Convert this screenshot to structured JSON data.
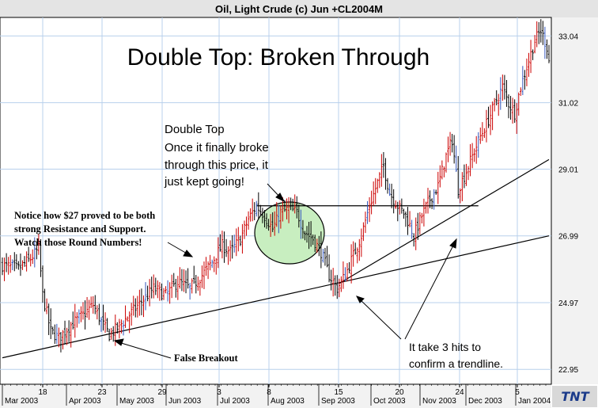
{
  "header": {
    "title": "Oil, Light Crude (c) Jun +CL2004M"
  },
  "chart_data": {
    "type": "ohlc",
    "title": "Double Top: Broken Through",
    "price_axis": {
      "ticks": [
        22.95,
        24.97,
        26.99,
        29.01,
        31.02,
        33.04
      ],
      "ylim": [
        22.5,
        33.6
      ]
    },
    "x_axis": {
      "day_ticks": [
        "18",
        "23",
        "29",
        "3",
        "8",
        "15",
        "20",
        "24",
        "5"
      ],
      "month_labels": [
        "Mar 2003",
        "Apr 2003",
        "May 2003",
        "Jun 2003",
        "Jul 2003",
        "Aug 2003",
        "Sep 2003",
        "Oct 2003",
        "Nov 2003",
        "Dec 2003",
        "Jan 2004"
      ]
    },
    "grid": true,
    "series": {
      "anchors": [
        [
          0,
          26.1
        ],
        [
          8,
          26.0
        ],
        [
          14,
          26.3
        ],
        [
          18,
          26.6
        ],
        [
          20,
          25.2
        ],
        [
          24,
          24.1
        ],
        [
          28,
          23.9
        ],
        [
          34,
          24.3
        ],
        [
          40,
          24.6
        ],
        [
          45,
          24.9
        ],
        [
          49,
          24.4
        ],
        [
          53,
          24.0
        ],
        [
          57,
          24.2
        ],
        [
          63,
          24.6
        ],
        [
          69,
          25.0
        ],
        [
          75,
          25.4
        ],
        [
          81,
          25.2
        ],
        [
          87,
          25.6
        ],
        [
          93,
          25.4
        ],
        [
          99,
          25.8
        ],
        [
          104,
          26.2
        ],
        [
          109,
          26.7
        ],
        [
          113,
          26.5
        ],
        [
          118,
          26.9
        ],
        [
          122,
          27.5
        ],
        [
          126,
          27.9
        ],
        [
          130,
          27.6
        ],
        [
          134,
          27.2
        ],
        [
          138,
          27.7
        ],
        [
          142,
          27.8
        ],
        [
          146,
          27.7
        ],
        [
          150,
          27.1
        ],
        [
          154,
          26.9
        ],
        [
          158,
          26.5
        ],
        [
          162,
          25.8
        ],
        [
          166,
          25.4
        ],
        [
          170,
          25.8
        ],
        [
          174,
          26.4
        ],
        [
          178,
          27.0
        ],
        [
          182,
          27.9
        ],
        [
          186,
          28.6
        ],
        [
          189,
          29.1
        ],
        [
          192,
          28.3
        ],
        [
          196,
          27.9
        ],
        [
          200,
          27.6
        ],
        [
          204,
          27.0
        ],
        [
          208,
          27.6
        ],
        [
          212,
          28.1
        ],
        [
          216,
          28.5
        ],
        [
          220,
          29.4
        ],
        [
          223,
          29.9
        ],
        [
          226,
          28.4
        ],
        [
          229,
          28.8
        ],
        [
          233,
          29.4
        ],
        [
          237,
          30.0
        ],
        [
          241,
          30.5
        ],
        [
          245,
          31.1
        ],
        [
          248,
          31.5
        ],
        [
          251,
          31.0
        ],
        [
          254,
          30.7
        ],
        [
          257,
          31.5
        ],
        [
          261,
          32.3
        ],
        [
          264,
          32.9
        ],
        [
          267,
          33.2
        ],
        [
          270,
          32.7
        ],
        [
          271,
          32.3
        ]
      ]
    },
    "trendlines": [
      {
        "from": [
          0,
          23.3
        ],
        "to": [
          271,
          26.99
        ]
      },
      {
        "from": [
          167,
          25.55
        ],
        "to": [
          271,
          29.3
        ]
      }
    ],
    "resistance_line": {
      "from": [
        126,
        27.9
      ],
      "to": [
        236,
        27.9
      ]
    }
  },
  "annotations": {
    "double_top": [
      "Double Top",
      "Once it finally broke",
      "through this price, it",
      "just kept going!"
    ],
    "notice": [
      "Notice how $27 proved to be both",
      "strong Resistance and Support.",
      "Watch those Round Numbers!"
    ],
    "false_breakout": "False Breakout",
    "trendline": [
      "It take 3 hits to",
      "confirm a trendline."
    ]
  },
  "logo": {
    "text": "TNT"
  },
  "colors": {
    "background": "#ffffff",
    "grid": "#b8d0ec",
    "bar": "#000000",
    "bar_up_accent": "#cc0000",
    "bar_accent_alt": "#3355bb",
    "ellipse_fill": "#c8eec0",
    "axis_panel": "#f2f2f2",
    "title_bar": "#e4e4e4"
  }
}
